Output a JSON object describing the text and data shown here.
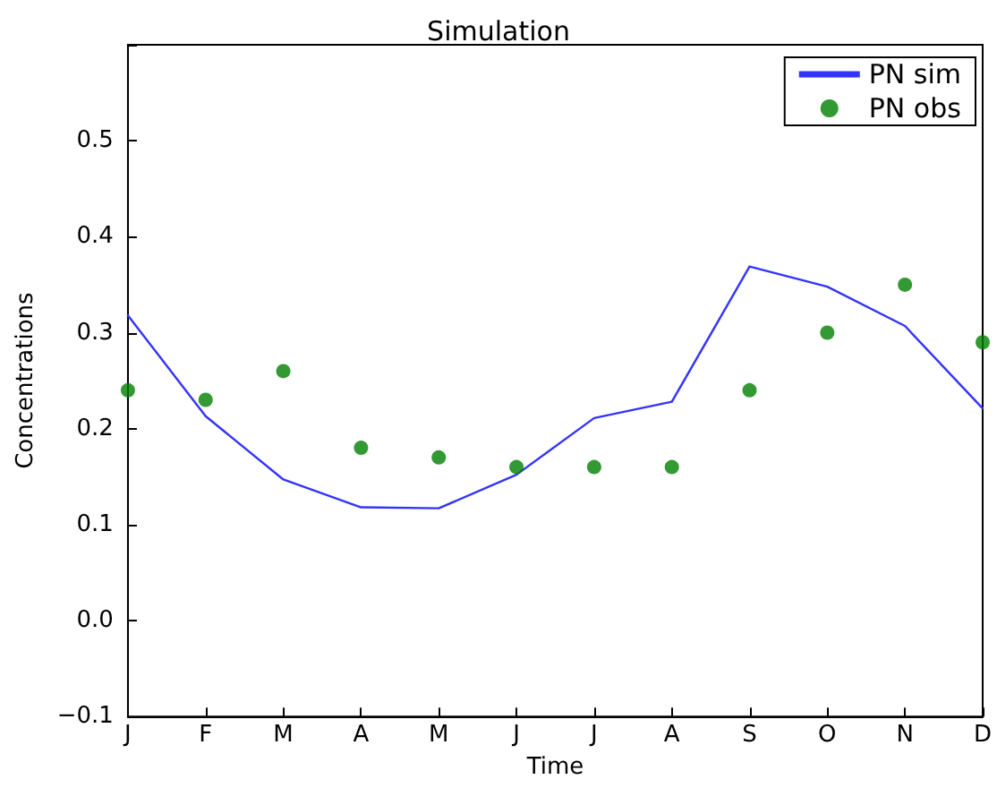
{
  "chart_data": {
    "type": "line",
    "title": "Simulation",
    "xlabel": "Time",
    "ylabel": "Concentrations",
    "categories": [
      "J",
      "F",
      "M",
      "A",
      "M",
      "J",
      "J",
      "A",
      "S",
      "O",
      "N",
      "D"
    ],
    "series": [
      {
        "name": "PN sim",
        "color": "#3333ff",
        "marker": "none",
        "values": [
          0.318,
          0.213,
          0.147,
          0.118,
          0.117,
          0.152,
          0.211,
          0.228,
          0.369,
          0.348,
          0.307,
          0.221
        ]
      },
      {
        "name": "PN obs",
        "type": "scatter",
        "color": "#008000",
        "marker": "circle",
        "values": [
          0.24,
          0.23,
          0.26,
          0.18,
          0.17,
          0.16,
          0.16,
          0.16,
          0.24,
          0.3,
          0.35,
          0.29
        ]
      }
    ],
    "ylim": [
      -0.1,
      0.6
    ],
    "yticks": [
      {
        "value": -0.1,
        "label": "−0.1"
      },
      {
        "value": 0,
        "label": "0.0"
      },
      0.1,
      0.2,
      0.3,
      0.4,
      0.5,
      {
        "value": 0.6,
        "label": null
      }
    ],
    "legend": "top right"
  }
}
